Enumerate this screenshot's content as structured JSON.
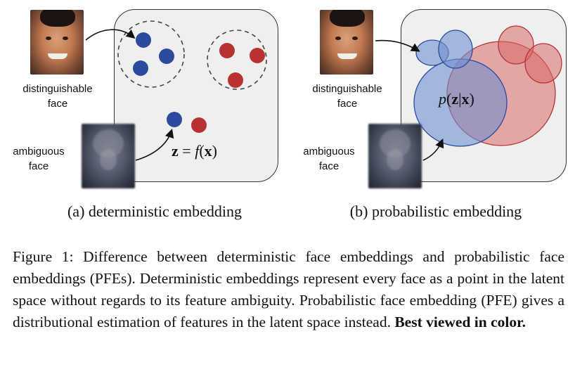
{
  "panel_a": {
    "face_top_label": [
      "distinguishable",
      "face"
    ],
    "face_bottom_label": [
      "ambiguous",
      "face"
    ],
    "equation": {
      "lhs": "z",
      "eq": " = ",
      "fn": "f",
      "arg": "x"
    },
    "subcaption": "(a) deterministic embedding"
  },
  "panel_b": {
    "face_top_label": [
      "distinguishable",
      "face"
    ],
    "face_bottom_label": [
      "ambiguous",
      "face"
    ],
    "equation": {
      "fn": "p",
      "arg1": "z",
      "arg2": "x"
    },
    "subcaption": "(b) probabilistic embedding"
  },
  "colors": {
    "blue": "#2b4b9e",
    "red": "#b83232",
    "blue_fill": "#6f8fd0",
    "red_fill": "#d96a6a",
    "box_bg": "#efefef"
  },
  "caption": {
    "label": "Figure 1:",
    "body": "Difference between deterministic face embeddings and probabilistic face embeddings (PFEs). Deterministic embeddings represent every face as a point in the latent space without regards to its feature ambiguity. Probabilistic face embedding (PFE) gives a distributional estimation of features in the latent space instead.",
    "emphasis": "Best viewed in color."
  }
}
